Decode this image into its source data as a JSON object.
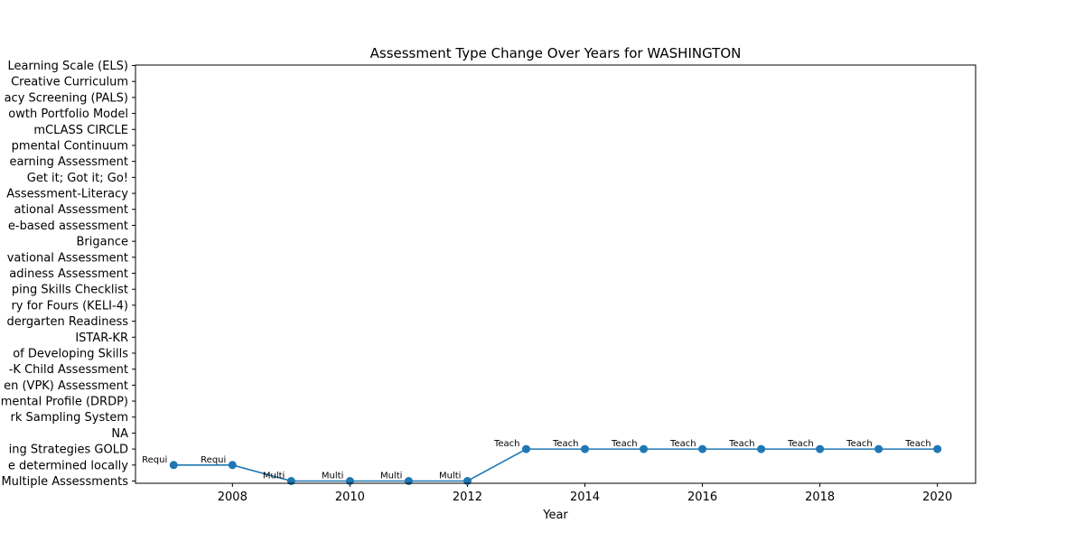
{
  "chart_data": {
    "type": "line",
    "title": "Assessment Type Change Over Years for WASHINGTON",
    "xlabel": "Year",
    "ylabel": "",
    "x_ticks": [
      2008,
      2010,
      2012,
      2014,
      2016,
      2018,
      2020
    ],
    "xlim": [
      2006.35,
      2020.65
    ],
    "y_categories": [
      "Multiple Assessments",
      "e determined locally",
      "ing Strategies GOLD",
      "NA",
      "rk Sampling System",
      "mental Profile (DRDP)",
      "en (VPK) Assessment",
      "-K Child Assessment",
      "of Developing Skills",
      "ISTAR-KR",
      "dergarten Readiness",
      "ry for Fours (KELI-4) ",
      "ping Skills Checklist",
      "adiness Assessment",
      "vational Assessment",
      "Brigance",
      "e-based assessment",
      "ational Assessment ",
      "Assessment-Literacy",
      "Get it; Got it; Go!",
      "earning Assessment",
      "pmental Continuum",
      "mCLASS CIRCLE",
      "owth Portfolio Model",
      "acy Screening (PALS)",
      "Creative Curriculum",
      "Learning Scale (ELS)"
    ],
    "series": [
      {
        "color": "#1f77b4",
        "x": [
          2007,
          2008,
          2009,
          2010,
          2011,
          2012,
          2013,
          2014,
          2015,
          2016,
          2017,
          2018,
          2019,
          2020
        ],
        "y": [
          "e determined locally",
          "e determined locally",
          "Multiple Assessments",
          "Multiple Assessments",
          "Multiple Assessments",
          "Multiple Assessments",
          "ing Strategies GOLD",
          "ing Strategies GOLD",
          "ing Strategies GOLD",
          "ing Strategies GOLD",
          "ing Strategies GOLD",
          "ing Strategies GOLD",
          "ing Strategies GOLD",
          "ing Strategies GOLD"
        ],
        "point_labels": [
          "Requi",
          "Requi",
          "Multi",
          "Multi",
          "Multi",
          "Multi",
          "Teach",
          "Teach",
          "Teach",
          "Teach",
          "Teach",
          "Teach",
          "Teach",
          "Teach"
        ]
      }
    ],
    "grid": false,
    "legend": "none"
  }
}
